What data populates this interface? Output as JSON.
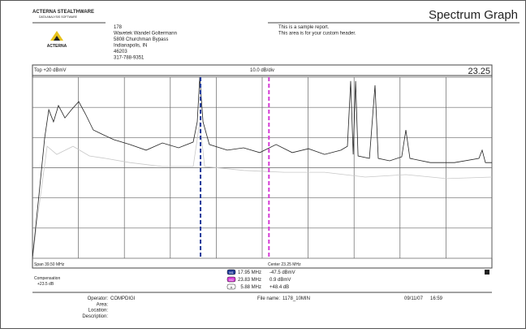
{
  "header": {
    "brand": "ACTERNA STEALTHWARE",
    "brand_sub": "DATA ANALYSIS SOFTWARE",
    "logo_text": "ACTERNA",
    "title": "Spectrum Graph",
    "address": [
      "178",
      "Wavetek Wandel Goltermann",
      "5808 Churchman Bypass",
      "Indianapolis, IN",
      "46203",
      "317-788-9351"
    ],
    "note": [
      "This is a sample report.",
      "This area is for your custom header."
    ]
  },
  "graph": {
    "top_label": "Top +20 dBmV",
    "scale_label": "10.0 dB/div",
    "readout": "23.25",
    "span_label": "Span 39.50 MHz",
    "center_label": "Center 23.25 MHz",
    "compensation_label": "Compensation",
    "compensation": "+23.5 dB",
    "xlim": [
      3.5,
      43.0
    ],
    "ylim": [
      -40,
      20
    ],
    "xticks": [
      3.5,
      7.45,
      11.4,
      15.35,
      19.3,
      23.25,
      27.2,
      31.15,
      35.1,
      39.05,
      43.0
    ],
    "yticks": [
      -40,
      -30,
      -20,
      -10,
      0,
      10,
      20
    ],
    "markers": [
      {
        "tag": "M1",
        "freq": {
          "value": 17.95,
          "label": "17.95 MHz"
        },
        "level": "-47.5 dBmV",
        "color": "#1f3a9a"
      },
      {
        "tag": "M2",
        "freq": {
          "value": 23.83,
          "label": "23.83 MHz"
        },
        "level": "0.9 dBmV",
        "color": "#d63ad6"
      },
      {
        "tag": "Δ",
        "freq": {
          "value": 5.88,
          "label": "5.88 MHz"
        },
        "level": "+48.4 dB"
      }
    ],
    "traces": [
      {
        "color": "#222222",
        "x": [
          3.5,
          4.06,
          4.55,
          4.9,
          5.31,
          5.73,
          6.29,
          6.85,
          7.48,
          8.04,
          8.73,
          9.43,
          10.48,
          11.87,
          13.27,
          14.67,
          16.06,
          17.32,
          17.67,
          17.88,
          18.16,
          18.71,
          20.25,
          21.65,
          23.04,
          24.44,
          25.83,
          27.23,
          28.62,
          30.02,
          30.58,
          30.86,
          31.07,
          31.28,
          31.49,
          32.47,
          32.95,
          33.23,
          34.21,
          35.25,
          35.6,
          35.95,
          37.7,
          39.79,
          41.88,
          42.16,
          42.44,
          43.0
        ],
        "values": [
          -40,
          -19,
          -0.2,
          9.2,
          5.2,
          10.6,
          6.5,
          9.2,
          11.9,
          7.9,
          2.5,
          1.2,
          -0.7,
          -2.3,
          -4.2,
          -1.8,
          -3.4,
          -1.5,
          5.2,
          20,
          5.2,
          -2.3,
          -4.2,
          -3.4,
          -5,
          -2.3,
          -5,
          -3.7,
          -5.6,
          -4.2,
          -2.9,
          18.7,
          -5.6,
          18.7,
          -6.1,
          -6.9,
          17.3,
          -6.9,
          -7.7,
          -6.4,
          2.5,
          -6.9,
          -8.3,
          -8.3,
          -6.9,
          -4.2,
          -8.3,
          -8.3
        ]
      },
      {
        "color": "#c8c8c8",
        "x": [
          3.5,
          4.2,
          4.76,
          5.59,
          6.99,
          8.39,
          9.78,
          11.87,
          14.67,
          17.32,
          17.88,
          18.3,
          21.65,
          25.14,
          28.62,
          32.12,
          35.6,
          39.09,
          43.0
        ],
        "values": [
          -40,
          -19,
          -2.9,
          -5.6,
          -2.9,
          -6.1,
          -6.9,
          -8.3,
          -9.6,
          -9.6,
          5.2,
          -9.6,
          -10.9,
          -11.5,
          -11.5,
          -13.1,
          -12.3,
          -13.6,
          -13.1
        ]
      }
    ]
  },
  "footer": {
    "fields": [
      {
        "label": "Operator:",
        "value": "COMPDIGI"
      },
      {
        "label": "Area:"
      },
      {
        "label": "Location:"
      },
      {
        "label": "Description:"
      }
    ],
    "file_label": "File name:",
    "file": "1178_10MIN",
    "date": "09/11/07",
    "time": "16:59"
  }
}
